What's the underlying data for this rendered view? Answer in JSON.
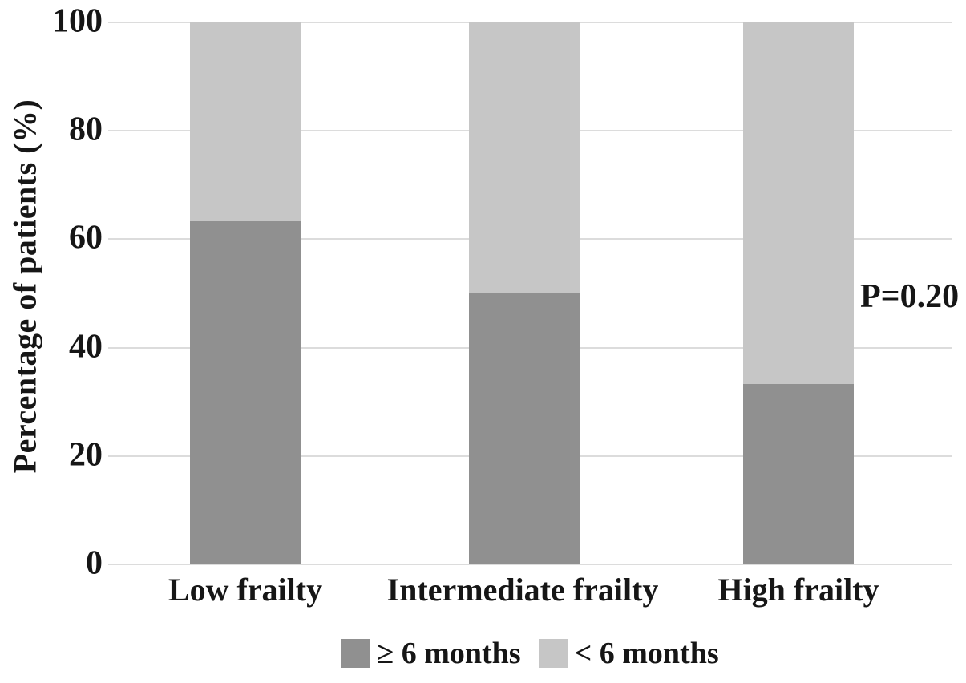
{
  "chart_data": {
    "type": "bar",
    "subtype": "stacked-percentage",
    "title": "",
    "xlabel": "",
    "ylabel": "Percentage of patients (%)",
    "categories": [
      "Low frailty",
      "Intermediate frailty",
      "High frailty"
    ],
    "series": [
      {
        "name": "≥ 6 months",
        "color": "#909090",
        "values": [
          63.3,
          50.0,
          33.3
        ]
      },
      {
        "name": "< 6 months",
        "color": "#c6c6c6",
        "values": [
          36.7,
          50.0,
          66.7
        ]
      }
    ],
    "ylim": [
      0,
      100
    ],
    "yticks": [
      0,
      20,
      40,
      60,
      80,
      100
    ],
    "grid": true,
    "legend_position": "bottom",
    "annotation": {
      "text": "P=0.20"
    }
  },
  "colors": {
    "background": "#ffffff",
    "gridline": "#dcdcdc",
    "text": "#161616",
    "series_dark": "#909090",
    "series_light": "#c6c6c6"
  }
}
